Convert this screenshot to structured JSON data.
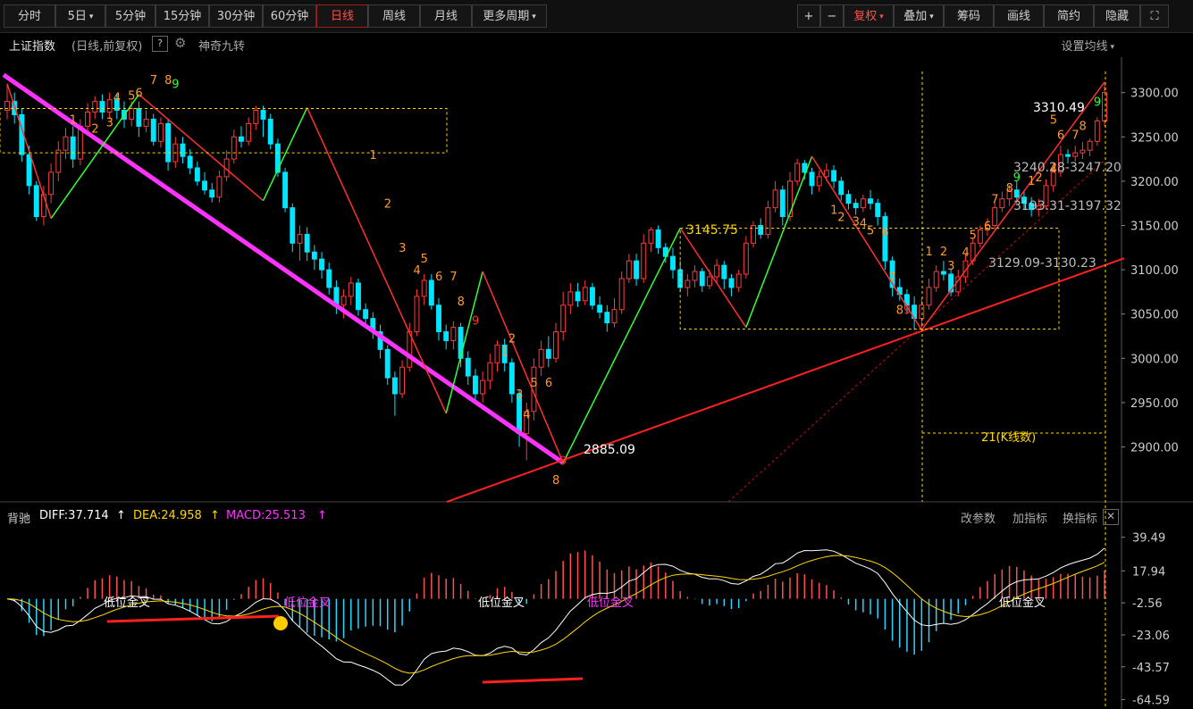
{
  "toolbar": {
    "left": [
      {
        "label": "分时",
        "active": false,
        "caret": false
      },
      {
        "label": "5日",
        "active": false,
        "caret": true
      },
      {
        "label": "5分钟",
        "active": false,
        "caret": false
      },
      {
        "label": "15分钟",
        "active": false,
        "caret": false
      },
      {
        "label": "30分钟",
        "active": false,
        "caret": false
      },
      {
        "label": "60分钟",
        "active": false,
        "caret": false
      },
      {
        "label": "日线",
        "active": true,
        "caret": false
      },
      {
        "label": "周线",
        "active": false,
        "caret": false
      },
      {
        "label": "月线",
        "active": false,
        "caret": false
      },
      {
        "label": "更多周期",
        "active": false,
        "caret": true
      }
    ],
    "right": [
      {
        "label": "+",
        "caret": false,
        "red": false
      },
      {
        "label": "−",
        "caret": false,
        "red": false
      },
      {
        "label": "复权",
        "caret": true,
        "red": true
      },
      {
        "label": "叠加",
        "caret": true,
        "red": false
      },
      {
        "label": "筹码",
        "caret": false,
        "red": false
      },
      {
        "label": "画线",
        "caret": false,
        "red": false
      },
      {
        "label": "简约",
        "caret": false,
        "red": false
      },
      {
        "label": "隐藏",
        "caret": false,
        "red": false
      },
      {
        "label": "⛶",
        "caret": false,
        "red": false
      }
    ]
  },
  "header": {
    "title": "上证指数",
    "subtitle": "(日线,前复权)",
    "help": "?",
    "magic": "神奇九转",
    "set_ma": "设置均线"
  },
  "macd_header": {
    "name": "背驰",
    "diff": "DIFF:37.714",
    "dea": "DEA:24.958",
    "macd": "MACD:25.513",
    "buttons": [
      "改参数",
      "加指标",
      "换指标"
    ],
    "close": "✕"
  },
  "colors": {
    "up": "#ff3b3b",
    "down": "#00e5ff",
    "bg": "#000000",
    "axis": "#cccccc",
    "magenta": "#ff33ff",
    "yellow": "#ffd700",
    "green": "#33ff33",
    "orange": "#ff9a2e"
  },
  "chart_data": {
    "type": "candlestick",
    "title": "上证指数",
    "price_axis": {
      "ticks": [
        "3300.00",
        "3250.00",
        "3200.00",
        "3150.00",
        "3100.00",
        "3050.00",
        "3000.00",
        "2950.00",
        "2900.00"
      ],
      "range": [
        2840,
        3340
      ]
    },
    "macd_axis": {
      "ticks": [
        "39.49",
        "17.94",
        "-2.56",
        "-23.06",
        "-43.57",
        "-64.59"
      ],
      "range": [
        -66,
        45
      ]
    },
    "candles": [
      [
        3280,
        3290,
        3270,
        3310
      ],
      [
        3290,
        3275,
        3265,
        3300
      ],
      [
        3275,
        3230,
        3222,
        3282
      ],
      [
        3230,
        3195,
        3185,
        3240
      ],
      [
        3195,
        3160,
        3155,
        3200
      ],
      [
        3160,
        3185,
        3150,
        3195
      ],
      [
        3185,
        3210,
        3175,
        3220
      ],
      [
        3210,
        3235,
        3200,
        3245
      ],
      [
        3235,
        3250,
        3225,
        3260
      ],
      [
        3250,
        3225,
        3215,
        3262
      ],
      [
        3225,
        3262,
        3218,
        3270
      ],
      [
        3262,
        3278,
        3255,
        3288
      ],
      [
        3278,
        3290,
        3270,
        3296
      ],
      [
        3290,
        3278,
        3270,
        3298
      ],
      [
        3278,
        3292,
        3270,
        3300
      ],
      [
        3292,
        3280,
        3270,
        3298
      ],
      [
        3280,
        3270,
        3260,
        3290
      ],
      [
        3270,
        3282,
        3262,
        3290
      ],
      [
        3282,
        3262,
        3250,
        3290
      ],
      [
        3262,
        3270,
        3255,
        3280
      ],
      [
        3270,
        3245,
        3240,
        3276
      ],
      [
        3245,
        3265,
        3238,
        3272
      ],
      [
        3265,
        3222,
        3212,
        3270
      ],
      [
        3222,
        3242,
        3215,
        3250
      ],
      [
        3242,
        3228,
        3220,
        3250
      ],
      [
        3228,
        3215,
        3208,
        3236
      ],
      [
        3215,
        3200,
        3195,
        3222
      ],
      [
        3200,
        3190,
        3185,
        3210
      ],
      [
        3190,
        3182,
        3176,
        3198
      ],
      [
        3182,
        3205,
        3176,
        3212
      ],
      [
        3205,
        3225,
        3200,
        3235
      ],
      [
        3225,
        3250,
        3220,
        3258
      ],
      [
        3250,
        3245,
        3238,
        3262
      ],
      [
        3245,
        3265,
        3240,
        3272
      ],
      [
        3265,
        3280,
        3258,
        3285
      ],
      [
        3280,
        3270,
        3250,
        3285
      ],
      [
        3270,
        3242,
        3236,
        3276
      ],
      [
        3242,
        3210,
        3205,
        3248
      ],
      [
        3210,
        3170,
        3165,
        3215
      ],
      [
        3170,
        3130,
        3120,
        3175
      ],
      [
        3130,
        3140,
        3110,
        3150
      ],
      [
        3140,
        3120,
        3110,
        3148
      ],
      [
        3120,
        3112,
        3100,
        3128
      ],
      [
        3112,
        3100,
        3090,
        3120
      ],
      [
        3100,
        3080,
        3072,
        3108
      ],
      [
        3080,
        3060,
        3050,
        3088
      ],
      [
        3060,
        3070,
        3045,
        3078
      ],
      [
        3070,
        3085,
        3060,
        3092
      ],
      [
        3085,
        3055,
        3048,
        3090
      ],
      [
        3055,
        3045,
        3035,
        3062
      ],
      [
        3045,
        3030,
        3022,
        3052
      ],
      [
        3030,
        3010,
        3000,
        3038
      ],
      [
        3010,
        2978,
        2970,
        3015
      ],
      [
        2978,
        2960,
        2935,
        2985
      ],
      [
        2960,
        2990,
        2955,
        2998
      ],
      [
        2990,
        3030,
        2985,
        3040
      ],
      [
        3030,
        3070,
        3025,
        3078
      ],
      [
        3070,
        3088,
        3060,
        3095
      ],
      [
        3088,
        3060,
        3055,
        3095
      ],
      [
        3060,
        3030,
        3020,
        3068
      ],
      [
        3030,
        3020,
        3010,
        3038
      ],
      [
        3020,
        3035,
        3010,
        3042
      ],
      [
        3035,
        3000,
        2990,
        3040
      ],
      [
        3000,
        2980,
        2970,
        3008
      ],
      [
        2980,
        2960,
        2950,
        2988
      ],
      [
        2960,
        2975,
        2950,
        2985
      ],
      [
        2975,
        2995,
        2965,
        3005
      ],
      [
        2995,
        3015,
        2985,
        3020
      ],
      [
        3015,
        2995,
        2985,
        3022
      ],
      [
        2995,
        2960,
        2950,
        3000
      ],
      [
        2960,
        2915,
        2900,
        2965
      ],
      [
        2915,
        2940,
        2885,
        2950
      ],
      [
        2940,
        2990,
        2930,
        3000
      ],
      [
        2990,
        3010,
        2980,
        3020
      ],
      [
        3010,
        3000,
        2990,
        3025
      ],
      [
        3000,
        3030,
        2995,
        3040
      ],
      [
        3030,
        3060,
        3020,
        3075
      ],
      [
        3060,
        3075,
        3050,
        3085
      ],
      [
        3075,
        3065,
        3058,
        3085
      ],
      [
        3065,
        3080,
        3060,
        3088
      ],
      [
        3080,
        3060,
        3055,
        3085
      ],
      [
        3060,
        3052,
        3045,
        3070
      ],
      [
        3052,
        3040,
        3030,
        3060
      ],
      [
        3040,
        3055,
        3035,
        3068
      ],
      [
        3055,
        3090,
        3050,
        3098
      ],
      [
        3090,
        3110,
        3085,
        3118
      ],
      [
        3110,
        3090,
        3082,
        3118
      ],
      [
        3090,
        3130,
        3085,
        3140
      ],
      [
        3130,
        3145,
        3120,
        3148
      ],
      [
        3145,
        3125,
        3118,
        3150
      ],
      [
        3125,
        3115,
        3108,
        3130
      ],
      [
        3115,
        3100,
        3090,
        3125
      ],
      [
        3100,
        3080,
        3075,
        3110
      ],
      [
        3080,
        3088,
        3070,
        3095
      ],
      [
        3088,
        3098,
        3080,
        3105
      ],
      [
        3098,
        3082,
        3075,
        3102
      ],
      [
        3082,
        3092,
        3078,
        3100
      ],
      [
        3092,
        3105,
        3085,
        3112
      ],
      [
        3105,
        3090,
        3078,
        3110
      ],
      [
        3090,
        3080,
        3070,
        3095
      ],
      [
        3080,
        3095,
        3075,
        3100
      ],
      [
        3095,
        3130,
        3090,
        3138
      ],
      [
        3130,
        3150,
        3125,
        3155
      ],
      [
        3150,
        3140,
        3135,
        3158
      ],
      [
        3140,
        3170,
        3135,
        3178
      ],
      [
        3170,
        3190,
        3165,
        3200
      ],
      [
        3190,
        3160,
        3150,
        3195
      ],
      [
        3160,
        3200,
        3155,
        3210
      ],
      [
        3200,
        3220,
        3195,
        3225
      ],
      [
        3220,
        3210,
        3202,
        3224
      ],
      [
        3210,
        3195,
        3185,
        3215
      ],
      [
        3195,
        3205,
        3188,
        3212
      ],
      [
        3205,
        3212,
        3200,
        3220
      ],
      [
        3212,
        3200,
        3192,
        3218
      ],
      [
        3200,
        3185,
        3178,
        3205
      ],
      [
        3185,
        3175,
        3168,
        3190
      ],
      [
        3175,
        3170,
        3162,
        3180
      ],
      [
        3170,
        3180,
        3165,
        3185
      ],
      [
        3180,
        3175,
        3168,
        3190
      ],
      [
        3175,
        3160,
        3150,
        3180
      ],
      [
        3160,
        3110,
        3100,
        3165
      ],
      [
        3110,
        3080,
        3070,
        3115
      ],
      [
        3080,
        3072,
        3065,
        3090
      ],
      [
        3072,
        3060,
        3050,
        3078
      ],
      [
        3060,
        3045,
        3032,
        3070
      ],
      [
        3045,
        3060,
        3035,
        3068
      ],
      [
        3060,
        3080,
        3055,
        3090
      ],
      [
        3080,
        3098,
        3075,
        3105
      ],
      [
        3098,
        3095,
        3088,
        3110
      ],
      [
        3095,
        3075,
        3070,
        3100
      ],
      [
        3075,
        3092,
        3070,
        3100
      ],
      [
        3092,
        3110,
        3085,
        3118
      ],
      [
        3110,
        3130,
        3105,
        3135
      ],
      [
        3130,
        3145,
        3125,
        3150
      ],
      [
        3145,
        3150,
        3138,
        3158
      ],
      [
        3150,
        3170,
        3145,
        3176
      ],
      [
        3170,
        3180,
        3165,
        3188
      ],
      [
        3180,
        3190,
        3172,
        3196
      ],
      [
        3190,
        3182,
        3175,
        3200
      ],
      [
        3182,
        3175,
        3168,
        3190
      ],
      [
        3175,
        3168,
        3160,
        3182
      ],
      [
        3168,
        3172,
        3160,
        3180
      ],
      [
        3172,
        3195,
        3168,
        3202
      ],
      [
        3195,
        3210,
        3188,
        3220
      ],
      [
        3210,
        3230,
        3205,
        3240
      ],
      [
        3230,
        3228,
        3220,
        3236
      ],
      [
        3228,
        3232,
        3222,
        3240
      ],
      [
        3232,
        3235,
        3225,
        3244
      ],
      [
        3235,
        3245,
        3228,
        3248
      ],
      [
        3245,
        3268,
        3240,
        3272
      ],
      [
        3268,
        3300,
        3262,
        3310
      ]
    ],
    "price_labels": [
      "3310.49",
      "2885.09",
      "3145.75",
      "3240.28-3247.20",
      "3193.31-3197.32",
      "3129.09-3130.23",
      "21(K线数)"
    ],
    "macd_labels": [
      "低位金叉",
      "低位金叉",
      "低位金叉",
      "低位金叉",
      "低位金叉",
      "低位金叉"
    ]
  }
}
